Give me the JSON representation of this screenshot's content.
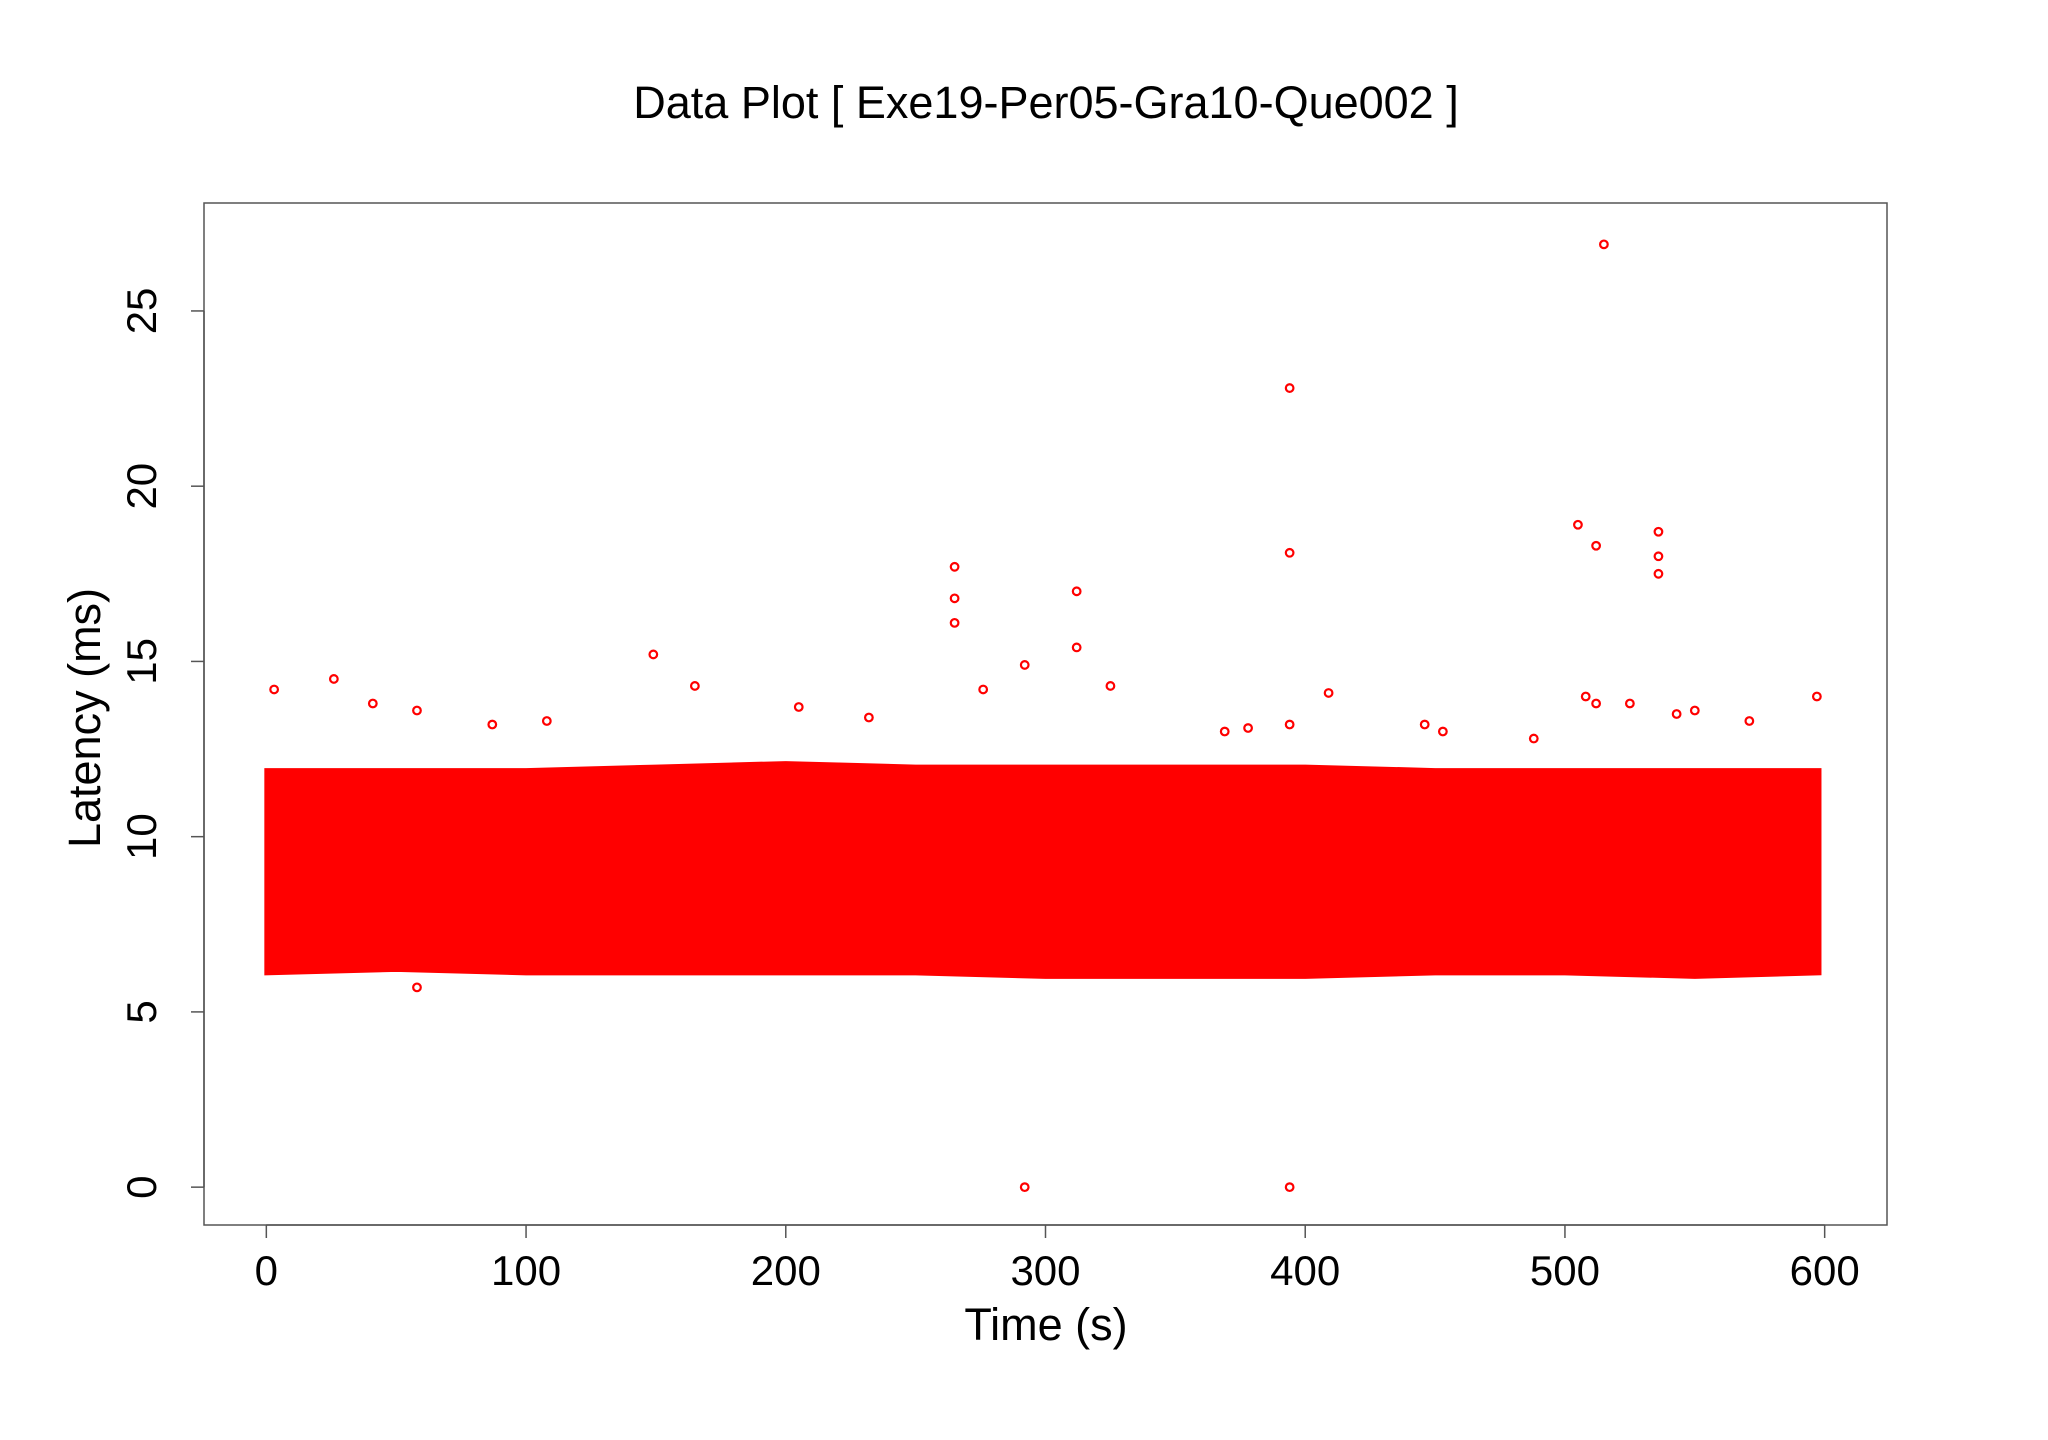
{
  "chart_data": {
    "type": "scatter",
    "title": "Data Plot [ Exe19-Per05-Gra10-Que002 ]",
    "x_label": "Time (s)",
    "y_label": "Latency (ms)",
    "xlim": [
      -24,
      624
    ],
    "xticks": [
      0,
      100,
      200,
      300,
      400,
      500,
      600
    ],
    "ylim": [
      -1.08,
      28.08
    ],
    "yticks": [
      0,
      5,
      10,
      15,
      20,
      25
    ],
    "color": "#ff0000",
    "band": {
      "x": [
        0,
        50,
        100,
        150,
        200,
        250,
        300,
        350,
        400,
        450,
        500,
        550,
        598
      ],
      "low": [
        6.1,
        6.2,
        6.1,
        6.1,
        6.1,
        6.1,
        6.0,
        6.0,
        6.0,
        6.1,
        6.1,
        6.0,
        6.1
      ],
      "high": [
        11.9,
        11.9,
        11.9,
        12.0,
        12.1,
        12.0,
        12.0,
        12.0,
        12.0,
        11.9,
        11.9,
        11.9,
        11.9
      ]
    },
    "x": [
      3,
      26,
      41,
      58,
      58,
      87,
      108,
      149,
      165,
      205,
      232,
      265,
      265,
      265,
      276,
      292,
      292,
      312,
      312,
      325,
      394,
      394,
      394,
      394,
      409,
      446,
      453,
      505,
      508,
      512,
      512,
      515,
      525,
      536,
      536,
      536,
      543,
      550,
      571,
      597,
      488,
      369,
      378
    ],
    "values": [
      14.2,
      14.5,
      13.8,
      13.6,
      5.7,
      13.2,
      13.3,
      15.2,
      14.3,
      13.7,
      13.4,
      17.7,
      16.8,
      16.1,
      14.2,
      14.9,
      0,
      17.0,
      15.4,
      14.3,
      22.8,
      18.1,
      13.2,
      0,
      14.1,
      13.2,
      13.0,
      18.9,
      14.0,
      18.3,
      13.8,
      26.9,
      13.8,
      18.7,
      18.0,
      17.5,
      13.5,
      13.6,
      13.3,
      14.0,
      12.8,
      13.0,
      13.1
    ]
  }
}
